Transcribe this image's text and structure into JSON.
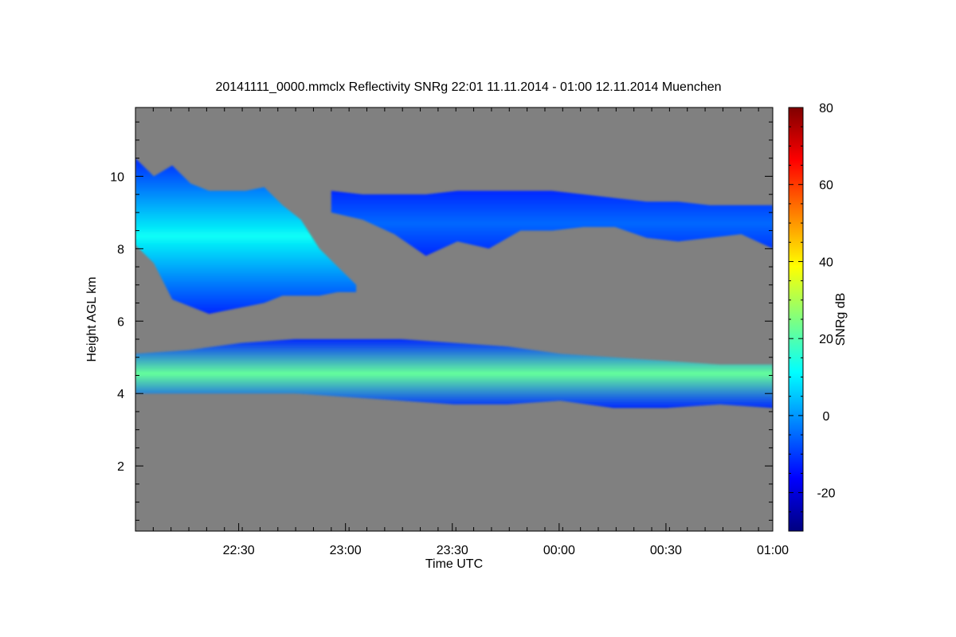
{
  "chart_data": {
    "type": "heatmap",
    "title": "20141111_0000.mmclx Reflectivity SNRg   22:01 11.11.2014 - 01:00 12.11.2014 Muenchen",
    "xlabel": "Time UTC",
    "ylabel": "Height AGL km",
    "colorbar_label": "SNRg dB",
    "x_range": [
      "22:01",
      "01:00"
    ],
    "x_ticks": [
      {
        "label": "22:30",
        "minutes": 29
      },
      {
        "label": "23:00",
        "minutes": 59
      },
      {
        "label": "23:30",
        "minutes": 89
      },
      {
        "label": "00:00",
        "minutes": 119
      },
      {
        "label": "00:30",
        "minutes": 149
      },
      {
        "label": "01:00",
        "minutes": 179
      }
    ],
    "y_range": [
      0.2,
      11.9
    ],
    "y_ticks": [
      2,
      4,
      6,
      8,
      10
    ],
    "colorbar_range": [
      -30,
      80
    ],
    "colorbar_ticks": [
      -20,
      0,
      20,
      40,
      60,
      80
    ],
    "colormap": "jet",
    "background_color": "#808080",
    "layers": [
      {
        "name": "upper cloud, dense part",
        "start_min": 0,
        "end_min": 62,
        "top_km": [
          10.5,
          10.0,
          10.3,
          9.8,
          9.6,
          9.6,
          9.6,
          9.7,
          9.2,
          8.8,
          8.0,
          7.5,
          7.0
        ],
        "base_km": [
          8.1,
          7.6,
          6.6,
          6.4,
          6.2,
          6.3,
          6.4,
          6.5,
          6.7,
          6.7,
          6.7,
          6.8,
          6.8
        ],
        "peak_snr_db": 12
      },
      {
        "name": "upper cloud, thin part",
        "start_min": 55,
        "end_min": 179,
        "top_km": [
          9.6,
          9.5,
          9.5,
          9.5,
          9.6,
          9.6,
          9.6,
          9.6,
          9.5,
          9.4,
          9.3,
          9.3,
          9.2,
          9.2,
          9.2
        ],
        "base_km": [
          9.0,
          8.8,
          8.4,
          7.8,
          8.2,
          8.0,
          8.5,
          8.5,
          8.6,
          8.6,
          8.3,
          8.2,
          8.3,
          8.4,
          8.0
        ],
        "peak_snr_db": -5
      },
      {
        "name": "mid-level cloud",
        "start_min": 0,
        "end_min": 179,
        "top_km": [
          5.1,
          5.2,
          5.4,
          5.5,
          5.5,
          5.5,
          5.4,
          5.3,
          5.1,
          5.0,
          4.9,
          4.8,
          4.8
        ],
        "base_km": [
          4.0,
          4.0,
          4.0,
          4.0,
          3.9,
          3.8,
          3.7,
          3.7,
          3.8,
          3.6,
          3.6,
          3.7,
          3.6
        ],
        "peak_snr_db": 22
      }
    ]
  }
}
